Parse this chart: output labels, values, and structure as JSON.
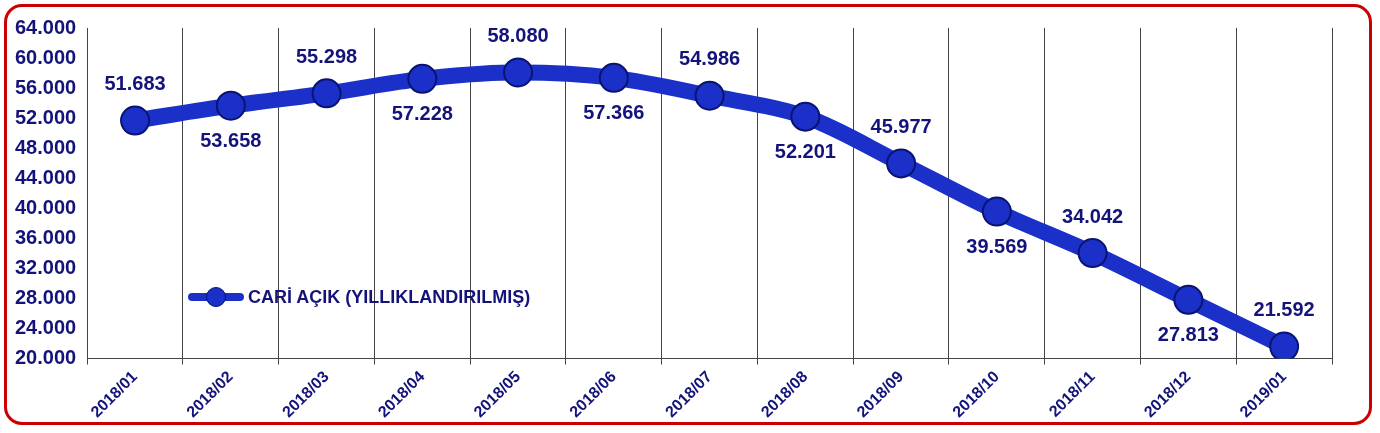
{
  "chart_data": {
    "type": "line",
    "categories": [
      "2018/01",
      "2018/02",
      "2018/03",
      "2018/04",
      "2018/05",
      "2018/06",
      "2018/07",
      "2018/08",
      "2018/09",
      "2018/10",
      "2018/11",
      "2018/12",
      "2019/01"
    ],
    "series": [
      {
        "name": "CARİ AÇIK (YILLIKLANDIRILMIŞ)",
        "color": "#1a30c8",
        "values": [
          51683,
          53658,
          55298,
          57228,
          58080,
          57366,
          54986,
          52201,
          45977,
          39569,
          34042,
          27813,
          21592
        ],
        "value_labels": [
          "51.683",
          "53.658",
          "55.298",
          "57.228",
          "58.080",
          "57.366",
          "54.986",
          "52.201",
          "45.977",
          "39.569",
          "34.042",
          "27.813",
          "21.592"
        ]
      }
    ],
    "ylim": [
      20000,
      64000
    ],
    "yticks": [
      {
        "value": 20000,
        "label": "20.000"
      },
      {
        "value": 24000,
        "label": "24.000"
      },
      {
        "value": 28000,
        "label": "28.000"
      },
      {
        "value": 32000,
        "label": "32.000"
      },
      {
        "value": 36000,
        "label": "36.000"
      },
      {
        "value": 40000,
        "label": "40.000"
      },
      {
        "value": 44000,
        "label": "44.000"
      },
      {
        "value": 48000,
        "label": "48.000"
      },
      {
        "value": 52000,
        "label": "52.000"
      },
      {
        "value": 56000,
        "label": "56.000"
      },
      {
        "value": 60000,
        "label": "60.000"
      },
      {
        "value": 64000,
        "label": "64.000"
      }
    ],
    "grid": "x",
    "legend": "bottom left",
    "marker": "circle",
    "line_style": "solid"
  }
}
